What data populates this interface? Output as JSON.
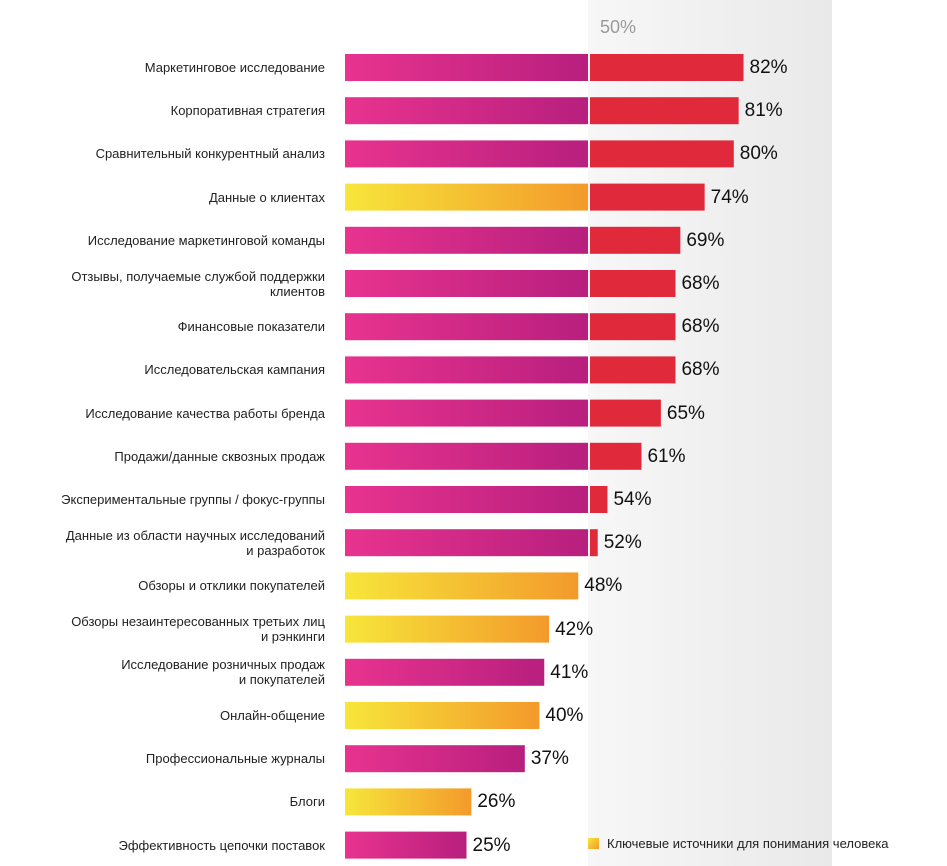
{
  "chart_data": {
    "type": "bar",
    "orientation": "horizontal",
    "reference_line": {
      "value": 50,
      "label": "50%"
    },
    "categories": [
      "Маркетинговое исследование",
      "Корпоративная стратегия",
      "Сравнительный конкурентный анализ",
      "Данные о клиентах",
      "Исследование маркетинговой команды",
      "Отзывы, получаемые службой поддержки\nклиентов",
      "Финансовые показатели",
      "Исследовательская кампания",
      "Исследование качества работы бренда",
      "Продажи/данные сквозных продаж",
      "Экспериментальные группы / фокус-группы",
      "Данные из области научных исследований\nи разработок",
      "Обзоры и отклики покупателей",
      "Обзоры незаинтересованных третьих лиц\nи рэнкинги",
      "Исследование розничных продаж\nи покупателей",
      "Онлайн-общение",
      "Профессиональные журналы",
      "Блоги",
      "Эффективность цепочки поставок"
    ],
    "values": [
      82,
      81,
      80,
      74,
      69,
      68,
      68,
      68,
      65,
      61,
      54,
      52,
      48,
      42,
      41,
      40,
      37,
      26,
      25
    ],
    "value_labels": [
      "82%",
      "81%",
      "80%",
      "74%",
      "69%",
      "68%",
      "68%",
      "68%",
      "65%",
      "61%",
      "54%",
      "52%",
      "48%",
      "42%",
      "41%",
      "40%",
      "37%",
      "26%",
      "25%"
    ],
    "highlighted": [
      false,
      false,
      false,
      true,
      false,
      false,
      false,
      false,
      false,
      false,
      false,
      false,
      true,
      true,
      false,
      true,
      false,
      true,
      false
    ],
    "legend": {
      "label": "Ключевые источники для понимания человека",
      "placement": "bottom-right"
    },
    "colors": {
      "base_start": "#e8338f",
      "base_end": "#b81f7e",
      "highlight_start": "#f7e63a",
      "highlight_end": "#f39a2b",
      "above_reference": "#e0293b",
      "reference_band": "#eeeeee",
      "reference_label": "#9a9a9a"
    }
  }
}
